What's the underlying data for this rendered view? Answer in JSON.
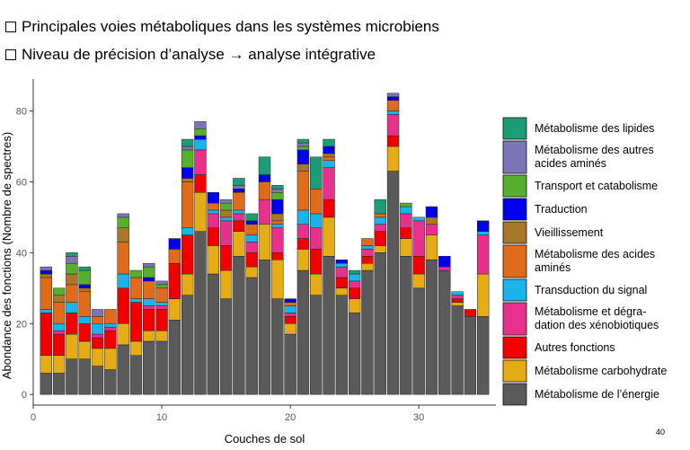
{
  "bullets": [
    "Principales voies métaboliques dans les systèmes microbiens",
    "Niveau de précision d’analyse → analyse intégrative"
  ],
  "page_number": "40",
  "chart_data": {
    "type": "bar",
    "stacked": true,
    "xlabel": "Couches de sol",
    "ylabel": "Abondance des fonctions (Nombre de spectres)",
    "xlim": [
      0,
      36
    ],
    "ylim": [
      -3,
      89
    ],
    "xticks": [
      0,
      10,
      20,
      30
    ],
    "yticks": [
      0,
      20,
      40,
      60,
      80
    ],
    "grid": false,
    "legend_position": "right",
    "x": [
      1,
      2,
      3,
      4,
      5,
      6,
      7,
      8,
      9,
      10,
      11,
      12,
      13,
      14,
      15,
      16,
      17,
      18,
      19,
      20,
      21,
      22,
      23,
      24,
      25,
      26,
      27,
      28,
      29,
      30,
      31,
      32,
      33,
      34,
      35
    ],
    "series": [
      {
        "name": "Métabolisme de l’énergie",
        "color": "#5a5a5a",
        "values": [
          6,
          6,
          10,
          10,
          8,
          7,
          14,
          11,
          15,
          15,
          21,
          28,
          46,
          34,
          27,
          39,
          33,
          38,
          27,
          17,
          35,
          28,
          39,
          28,
          23,
          35,
          40,
          63,
          39,
          30,
          38,
          35,
          25,
          22,
          22
        ]
      },
      {
        "name": "Métabolisme carbohydrate",
        "color": "#e5ac15",
        "values": [
          5,
          5,
          7,
          5,
          5,
          6,
          6,
          4,
          3,
          3,
          6,
          6,
          11,
          8,
          8,
          7,
          3,
          10,
          11,
          3,
          6,
          6,
          11,
          2,
          4,
          2,
          2,
          7,
          5,
          4,
          7,
          0,
          1,
          0,
          12
        ]
      },
      {
        "name": "Autres fonctions",
        "color": "#f20000",
        "values": [
          12,
          6,
          6,
          5,
          3,
          5,
          10,
          11,
          6,
          6,
          10,
          11,
          5,
          5,
          7,
          3,
          4,
          0,
          2,
          2,
          3,
          7,
          5,
          3,
          3,
          2,
          4,
          3,
          3,
          5,
          0,
          0,
          1,
          2,
          0
        ]
      },
      {
        "name": "Métabolisme et dégradation des xénobiotiques",
        "color": "#e8308d",
        "values": [
          0,
          1,
          0,
          0,
          1,
          1,
          0,
          0,
          1,
          1,
          0,
          0,
          7,
          4,
          7,
          2,
          3,
          7,
          7,
          1,
          4,
          6,
          9,
          3,
          2,
          2,
          2,
          6,
          4,
          10,
          3,
          1,
          1,
          0,
          11
        ]
      },
      {
        "name": "Transduction du signal",
        "color": "#1ab3ea",
        "values": [
          1,
          2,
          3,
          2,
          3,
          1,
          4,
          1,
          2,
          1,
          0,
          2,
          3,
          1,
          1,
          1,
          2,
          0,
          1,
          2,
          4,
          4,
          2,
          1,
          2,
          1,
          2,
          1,
          2,
          1,
          0,
          0,
          1,
          0,
          1
        ]
      },
      {
        "name": "Métabolisme des acides aminés",
        "color": "#e06b1a",
        "values": [
          9,
          6,
          5,
          7,
          2,
          4,
          9,
          6,
          5,
          4,
          4,
          13,
          0,
          2,
          0,
          5,
          3,
          5,
          1,
          1,
          11,
          7,
          1,
          0,
          0,
          2,
          1,
          3,
          0,
          0,
          0,
          0,
          0,
          0,
          0
        ]
      },
      {
        "name": "Vieillissement",
        "color": "#a87828",
        "values": [
          1,
          2,
          3,
          1,
          0,
          0,
          4,
          0,
          0,
          0,
          0,
          1,
          0,
          0,
          2,
          0,
          0,
          0,
          2,
          0,
          2,
          0,
          1,
          0,
          0,
          0,
          0,
          0,
          0,
          0,
          2,
          0,
          0,
          0,
          0
        ]
      },
      {
        "name": "Traduction",
        "color": "#0000ee",
        "values": [
          1,
          0,
          0,
          1,
          0,
          0,
          0,
          0,
          1,
          0,
          3,
          3,
          1,
          3,
          0,
          1,
          1,
          2,
          4,
          1,
          4,
          0,
          2,
          1,
          0,
          0,
          0,
          1,
          0,
          0,
          3,
          3,
          0,
          0,
          3
        ]
      },
      {
        "name": "Transport et catabolisme",
        "color": "#57b02b",
        "values": [
          0,
          2,
          3,
          4,
          0,
          0,
          3,
          2,
          3,
          1,
          0,
          5,
          2,
          0,
          2,
          0,
          0,
          0,
          2,
          0,
          1,
          0,
          0,
          0,
          0,
          0,
          0,
          0,
          1,
          0,
          0,
          0,
          0,
          0,
          0
        ]
      },
      {
        "name": "Métabolisme des autres acides aminés",
        "color": "#7e75b8",
        "values": [
          1,
          0,
          2,
          0,
          2,
          0,
          1,
          0,
          1,
          1,
          0,
          1,
          2,
          0,
          1,
          1,
          0,
          0,
          1,
          0,
          1,
          0,
          0,
          0,
          0,
          0,
          0,
          1,
          0,
          0,
          0,
          0,
          0,
          0,
          0
        ]
      },
      {
        "name": "Métabolisme des lipides",
        "color": "#1b9e77",
        "values": [
          0,
          0,
          1,
          1,
          0,
          0,
          0,
          0,
          0,
          0,
          0,
          2,
          0,
          0,
          0,
          2,
          2,
          5,
          1,
          0,
          1,
          9,
          2,
          0,
          1,
          0,
          4,
          0,
          0,
          0,
          0,
          0,
          0,
          0,
          0
        ]
      }
    ],
    "legend": [
      {
        "color": "#1b9e77",
        "lines": [
          "Métabolisme des lipides"
        ]
      },
      {
        "color": "#7e75b8",
        "lines": [
          "Métabolisme des autres",
          "acides aminés"
        ]
      },
      {
        "color": "#57b02b",
        "lines": [
          "Transport et catabolisme"
        ]
      },
      {
        "color": "#0000ee",
        "lines": [
          "Traduction"
        ]
      },
      {
        "color": "#a87828",
        "lines": [
          "Vieillissement"
        ]
      },
      {
        "color": "#e06b1a",
        "lines": [
          "Métabolisme des acides",
          "aminés"
        ]
      },
      {
        "color": "#1ab3ea",
        "lines": [
          "Transduction du signal"
        ]
      },
      {
        "color": "#e8308d",
        "lines": [
          "Métabolisme et dégra-",
          "dation des xénobiotiques"
        ]
      },
      {
        "color": "#f20000",
        "lines": [
          "Autres fonctions"
        ]
      },
      {
        "color": "#e5ac15",
        "lines": [
          "Métabolisme carbohydrate"
        ]
      },
      {
        "color": "#5a5a5a",
        "lines": [
          "Métabolisme de l’énergie"
        ]
      }
    ]
  }
}
